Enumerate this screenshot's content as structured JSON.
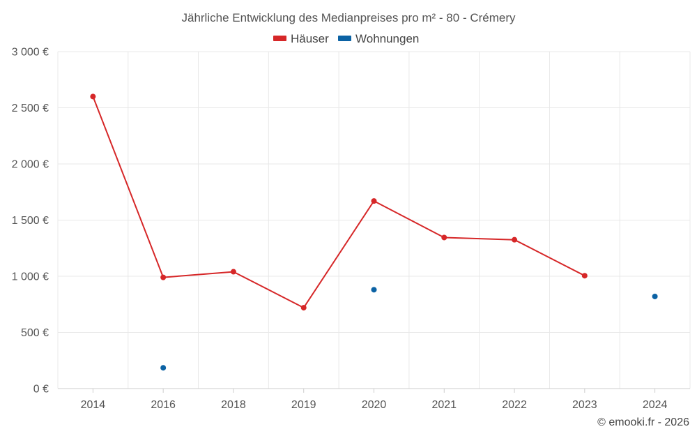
{
  "chart_data": {
    "type": "line",
    "title": "Jährliche Entwicklung des Medianpreises pro m² - 80 - Crémery",
    "categories": [
      "2014",
      "2016",
      "2018",
      "2019",
      "2020",
      "2021",
      "2022",
      "2023",
      "2024"
    ],
    "series": [
      {
        "name": "Häuser",
        "color": "#d62728",
        "style": "line-with-markers",
        "values": [
          2600,
          990,
          1040,
          720,
          1670,
          1345,
          1325,
          1005,
          null
        ]
      },
      {
        "name": "Wohnungen",
        "color": "#0b62a4",
        "style": "markers-only",
        "values": [
          null,
          185,
          null,
          null,
          880,
          null,
          null,
          null,
          820
        ]
      }
    ],
    "ylim": [
      0,
      3000
    ],
    "yticks": [
      0,
      500,
      1000,
      1500,
      2000,
      2500,
      3000
    ],
    "ytick_labels": [
      "0 €",
      "500 €",
      "1 000 €",
      "1 500 €",
      "2 000 €",
      "2 500 €",
      "3 000 €"
    ],
    "xlabel": "",
    "ylabel": "",
    "grid": true,
    "legend_position": "top-center"
  },
  "credit": "© emooki.fr - 2026"
}
